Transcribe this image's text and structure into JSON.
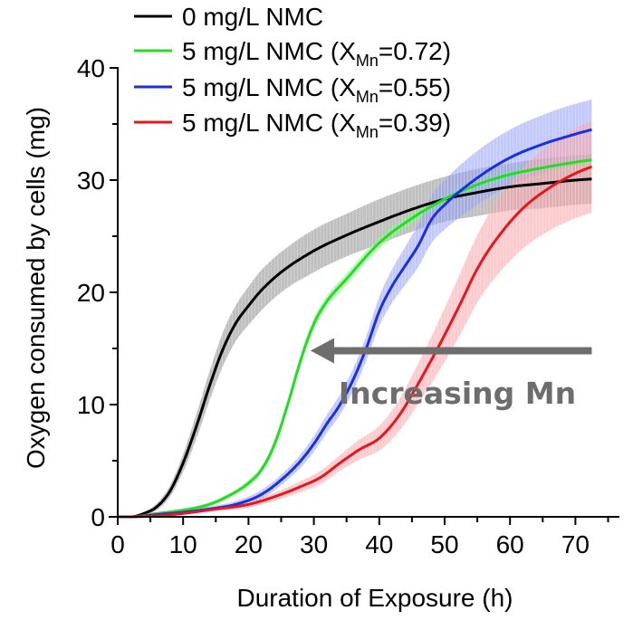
{
  "chart_data": {
    "type": "line",
    "title": "",
    "xlabel": "Duration of Exposure (h)",
    "ylabel": "Oxygen consumed by cells (mg)",
    "xlim": [
      0,
      77
    ],
    "ylim": [
      0,
      40
    ],
    "xticks": [
      0,
      10,
      20,
      30,
      40,
      50,
      60,
      70
    ],
    "xticks_minor": [
      5,
      15,
      25,
      35,
      45,
      55,
      65,
      75
    ],
    "yticks": [
      0,
      10,
      20,
      30,
      40
    ],
    "yticks_minor": [
      5,
      15,
      25,
      35
    ],
    "grid": false,
    "legend_position": "top",
    "error_bands": true,
    "series": [
      {
        "name": "0 mg/L NMC",
        "legend_main": "0 mg/L NMC",
        "legend_sub": "",
        "legend_tail": "",
        "color": "#000000",
        "band_color": "#8a8a8a",
        "x": [
          0,
          2,
          4,
          6,
          8,
          10,
          12,
          14,
          16,
          18,
          20,
          22,
          25,
          30,
          35,
          40,
          45,
          50,
          55,
          60,
          65,
          70,
          72.5
        ],
        "y": [
          0,
          0,
          0.3,
          0.9,
          2.3,
          4.8,
          8.0,
          11.6,
          14.8,
          17.2,
          18.8,
          20.2,
          21.8,
          23.7,
          25.1,
          26.3,
          27.4,
          28.3,
          28.9,
          29.4,
          29.7,
          30.0,
          30.1
        ],
        "err": [
          0,
          0,
          0.1,
          0.3,
          0.5,
          0.8,
          1.1,
          1.3,
          1.5,
          1.6,
          1.7,
          1.8,
          1.8,
          1.9,
          1.9,
          2.0,
          2.0,
          2.0,
          2.1,
          2.1,
          2.2,
          2.2,
          2.2
        ]
      },
      {
        "name": "5 mg/L NMC (XMn=0.72)",
        "legend_main": "5 mg/L NMC (X",
        "legend_sub": "Mn",
        "legend_tail": "=0.72)",
        "color": "#22dd22",
        "band_color": "#7ff07f",
        "x": [
          0,
          2,
          6,
          10,
          14,
          18,
          20,
          22,
          24,
          26,
          28,
          30,
          32,
          35,
          40,
          45,
          50,
          55,
          60,
          65,
          70,
          72.5
        ],
        "y": [
          0,
          0,
          0.3,
          0.6,
          1.1,
          2.2,
          3.0,
          4.2,
          6.5,
          10.0,
          14.0,
          17.2,
          19.2,
          21.2,
          24.4,
          26.6,
          28.3,
          29.6,
          30.5,
          31.1,
          31.6,
          31.8
        ],
        "err": [
          0,
          0,
          0.1,
          0.1,
          0.2,
          0.2,
          0.3,
          0.3,
          0.4,
          0.4,
          0.5,
          0.5,
          0.5,
          0.5,
          0.5,
          0.5,
          0.5,
          0.5,
          0.5,
          0.5,
          0.5,
          0.5
        ]
      },
      {
        "name": "5 mg/L NMC (XMn=0.55)",
        "legend_main": "5 mg/L NMC (X",
        "legend_sub": "Mn",
        "legend_tail": "=0.55)",
        "color": "#1a2fe0",
        "band_color": "#8f9cf5",
        "x": [
          0,
          2,
          6,
          10,
          14,
          18,
          22,
          26,
          28,
          30,
          32,
          34,
          36,
          38,
          40,
          42,
          44,
          46,
          48,
          50,
          55,
          60,
          65,
          70,
          72.5
        ],
        "y": [
          0,
          0,
          0.2,
          0.4,
          0.7,
          1.1,
          2.0,
          3.8,
          5.0,
          6.5,
          8.3,
          10.0,
          12.2,
          15.0,
          18.3,
          20.6,
          22.4,
          24.2,
          26.5,
          27.8,
          30.2,
          32.0,
          33.2,
          34.1,
          34.5
        ],
        "err": [
          0,
          0,
          0.1,
          0.1,
          0.2,
          0.3,
          0.4,
          0.5,
          0.6,
          0.7,
          0.8,
          0.9,
          1.0,
          1.1,
          1.3,
          1.5,
          1.7,
          1.9,
          2.1,
          2.2,
          2.4,
          2.5,
          2.6,
          2.7,
          2.7
        ]
      },
      {
        "name": "5 mg/L NMC (XMn=0.39)",
        "legend_main": "5 mg/L NMC (X",
        "legend_sub": "Mn",
        "legend_tail": "=0.39)",
        "color": "#e8141e",
        "band_color": "#f7a0a6",
        "x": [
          0,
          2,
          6,
          10,
          15,
          20,
          25,
          28,
          31,
          34,
          37,
          40,
          43,
          46,
          48,
          50,
          52,
          55,
          58,
          62,
          66,
          70,
          72.5
        ],
        "y": [
          0,
          0,
          0.1,
          0.3,
          0.7,
          1.1,
          2.0,
          2.7,
          3.5,
          4.8,
          6.0,
          7.0,
          9.0,
          11.9,
          14.0,
          16.2,
          18.5,
          22.1,
          24.8,
          27.5,
          29.3,
          30.6,
          31.2
        ],
        "err": [
          0,
          0,
          0.1,
          0.1,
          0.2,
          0.3,
          0.4,
          0.5,
          0.6,
          0.7,
          0.9,
          1.1,
          1.4,
          1.8,
          2.1,
          2.4,
          2.7,
          3.0,
          3.3,
          3.6,
          3.8,
          4.0,
          4.1
        ]
      }
    ],
    "annotation": {
      "text": "Increasing Mn",
      "arrow_from_x": 72.5,
      "arrow_to_x": 29.5,
      "arrow_y": 14.8,
      "color": "#6d6d6d"
    }
  }
}
